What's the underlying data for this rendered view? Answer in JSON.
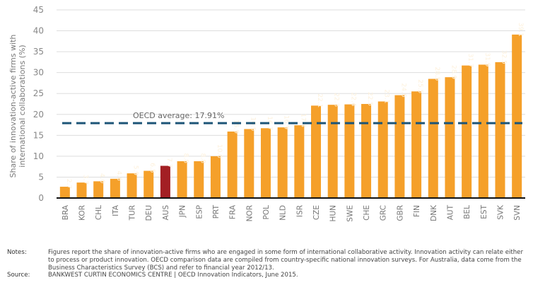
{
  "chart_data": {
    "type": "bar",
    "title": "",
    "xlabel": "",
    "ylabel": "Share of innovation-active firms with international collaborations (%)",
    "ylabel_lines": [
      "Share of innovation-active firms with",
      "international collaborations (%)"
    ],
    "ylim": [
      0,
      45
    ],
    "yticks": [
      0,
      5,
      10,
      15,
      20,
      25,
      30,
      35,
      40,
      45
    ],
    "grid": true,
    "categories": [
      "BRA",
      "KOR",
      "CHL",
      "ITA",
      "TUR",
      "DEU",
      "AUS",
      "JPN",
      "ESP",
      "PRT",
      "FRA",
      "NOR",
      "POL",
      "NLD",
      "ISR",
      "CZE",
      "HUN",
      "SWE",
      "CHE",
      "GRC",
      "GBR",
      "FIN",
      "DNK",
      "AUT",
      "BEL",
      "EST",
      "SVK",
      "SVN"
    ],
    "values": [
      2.7,
      3.7,
      4.0,
      4.6,
      5.9,
      6.5,
      7.7,
      8.8,
      8.8,
      10.0,
      15.9,
      16.5,
      16.7,
      16.9,
      17.4,
      22.1,
      22.3,
      22.4,
      22.5,
      23.1,
      24.6,
      25.5,
      28.5,
      28.9,
      31.7,
      31.9,
      32.5,
      39.1
    ],
    "value_labels": [
      "2.7",
      "3.7",
      "4.0",
      "4.6",
      "5.9",
      "6.5",
      "7.7",
      "8.8",
      "8.8",
      "10.0",
      "15.9",
      "16.5",
      "16.7",
      "16.9",
      "17.4",
      "22.1",
      "22.3",
      "22.4",
      "22.5",
      "23.1",
      "24.6",
      "25.5",
      "28.5",
      "28.9",
      "31.7",
      "31.9",
      "32.5",
      "39.1"
    ],
    "highlight": "AUS",
    "reference_line": {
      "label": "OECD average: 17.91%",
      "value": 17.91
    },
    "colors": {
      "bar": "#f5a02a",
      "highlight": "#a31f24",
      "average_line": "#1d5577",
      "grid": "#dddddd",
      "axis": "#111111"
    }
  },
  "notes": {
    "notes_key": "Notes:",
    "notes_text": "Figures report the share of innovation-active firms who are engaged in some form of international collaborative activity. Innovation activity can relate either to process or product innovation. OECD comparison data are compiled from country-specific national innovation surveys. For Australia, data come from the Business Characteristics Survey (BCS) and refer to financial year 2012/13.",
    "source_key": "Source:",
    "source_text": "BANKWEST CURTIN ECONOMICS CENTRE | OECD Innovation Indicators, June 2015."
  }
}
